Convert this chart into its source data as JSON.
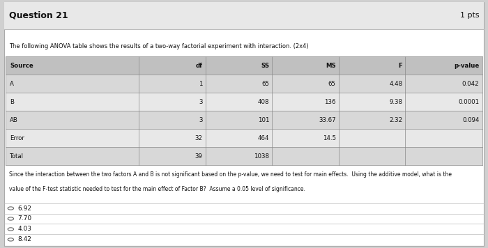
{
  "title": "Question 21",
  "pts": "1 pts",
  "description": "The following ANOVA table shows the results of a two-way factorial experiment with interaction. (2x4)",
  "table_headers": [
    "Source",
    "df",
    "SS",
    "MS",
    "F",
    "p-value"
  ],
  "table_rows": [
    [
      "A",
      "1",
      "65",
      "65",
      "4.48",
      "0.042"
    ],
    [
      "B",
      "3",
      "408",
      "136",
      "9.38",
      "0.0001"
    ],
    [
      "AB",
      "3",
      "101",
      "33.67",
      "2.32",
      "0.094"
    ],
    [
      "Error",
      "32",
      "464",
      "14.5",
      "",
      ""
    ],
    [
      "Total",
      "39",
      "1038",
      "",
      "",
      ""
    ]
  ],
  "paragraph_line1": "Since the interaction between the two factors A and B is not significant based on the p-value, we need to test for main effects.  Using the additive model, what is the",
  "paragraph_line2": "value of the F-test statistic needed to test for the main effect of Factor B?  Assume a 0.05 level of significance.",
  "choices": [
    "6.92",
    "7.70",
    "4.03",
    "8.42"
  ],
  "outer_bg": "#d0d0d0",
  "card_bg": "#ffffff",
  "title_bar_bg": "#e8e8e8",
  "header_bg": "#c0c0c0",
  "row_bg_dark": "#d8d8d8",
  "row_bg_light": "#e8e8e8",
  "border_color": "#999999",
  "text_color": "#111111",
  "choice_divider_color": "#bbbbbb",
  "choice_section_bg": "#e0e0e0"
}
